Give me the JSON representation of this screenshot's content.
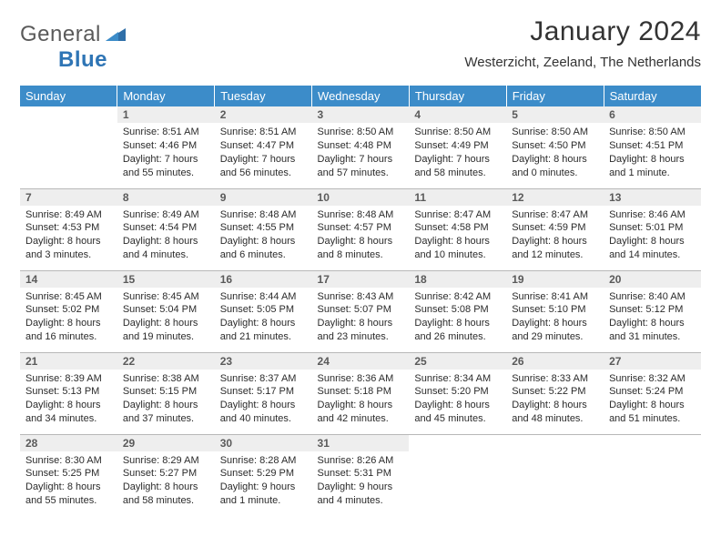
{
  "logo": {
    "text_a": "General",
    "text_b": "Blue"
  },
  "title": "January 2024",
  "subtitle": "Westerzicht, Zeeland, The Netherlands",
  "colors": {
    "header_bg": "#3c8cc9",
    "daynum_bg": "#eeeeee",
    "border": "#b8b8b8"
  },
  "weekdays": [
    "Sunday",
    "Monday",
    "Tuesday",
    "Wednesday",
    "Thursday",
    "Friday",
    "Saturday"
  ],
  "weeks": [
    [
      null,
      {
        "n": "1",
        "sunrise": "8:51 AM",
        "sunset": "4:46 PM",
        "day_h": "7",
        "day_m": "55"
      },
      {
        "n": "2",
        "sunrise": "8:51 AM",
        "sunset": "4:47 PM",
        "day_h": "7",
        "day_m": "56"
      },
      {
        "n": "3",
        "sunrise": "8:50 AM",
        "sunset": "4:48 PM",
        "day_h": "7",
        "day_m": "57"
      },
      {
        "n": "4",
        "sunrise": "8:50 AM",
        "sunset": "4:49 PM",
        "day_h": "7",
        "day_m": "58"
      },
      {
        "n": "5",
        "sunrise": "8:50 AM",
        "sunset": "4:50 PM",
        "day_h": "8",
        "day_m": "0"
      },
      {
        "n": "6",
        "sunrise": "8:50 AM",
        "sunset": "4:51 PM",
        "day_h": "8",
        "day_m": "1"
      }
    ],
    [
      {
        "n": "7",
        "sunrise": "8:49 AM",
        "sunset": "4:53 PM",
        "day_h": "8",
        "day_m": "3"
      },
      {
        "n": "8",
        "sunrise": "8:49 AM",
        "sunset": "4:54 PM",
        "day_h": "8",
        "day_m": "4"
      },
      {
        "n": "9",
        "sunrise": "8:48 AM",
        "sunset": "4:55 PM",
        "day_h": "8",
        "day_m": "6"
      },
      {
        "n": "10",
        "sunrise": "8:48 AM",
        "sunset": "4:57 PM",
        "day_h": "8",
        "day_m": "8"
      },
      {
        "n": "11",
        "sunrise": "8:47 AM",
        "sunset": "4:58 PM",
        "day_h": "8",
        "day_m": "10"
      },
      {
        "n": "12",
        "sunrise": "8:47 AM",
        "sunset": "4:59 PM",
        "day_h": "8",
        "day_m": "12"
      },
      {
        "n": "13",
        "sunrise": "8:46 AM",
        "sunset": "5:01 PM",
        "day_h": "8",
        "day_m": "14"
      }
    ],
    [
      {
        "n": "14",
        "sunrise": "8:45 AM",
        "sunset": "5:02 PM",
        "day_h": "8",
        "day_m": "16"
      },
      {
        "n": "15",
        "sunrise": "8:45 AM",
        "sunset": "5:04 PM",
        "day_h": "8",
        "day_m": "19"
      },
      {
        "n": "16",
        "sunrise": "8:44 AM",
        "sunset": "5:05 PM",
        "day_h": "8",
        "day_m": "21"
      },
      {
        "n": "17",
        "sunrise": "8:43 AM",
        "sunset": "5:07 PM",
        "day_h": "8",
        "day_m": "23"
      },
      {
        "n": "18",
        "sunrise": "8:42 AM",
        "sunset": "5:08 PM",
        "day_h": "8",
        "day_m": "26"
      },
      {
        "n": "19",
        "sunrise": "8:41 AM",
        "sunset": "5:10 PM",
        "day_h": "8",
        "day_m": "29"
      },
      {
        "n": "20",
        "sunrise": "8:40 AM",
        "sunset": "5:12 PM",
        "day_h": "8",
        "day_m": "31"
      }
    ],
    [
      {
        "n": "21",
        "sunrise": "8:39 AM",
        "sunset": "5:13 PM",
        "day_h": "8",
        "day_m": "34"
      },
      {
        "n": "22",
        "sunrise": "8:38 AM",
        "sunset": "5:15 PM",
        "day_h": "8",
        "day_m": "37"
      },
      {
        "n": "23",
        "sunrise": "8:37 AM",
        "sunset": "5:17 PM",
        "day_h": "8",
        "day_m": "40"
      },
      {
        "n": "24",
        "sunrise": "8:36 AM",
        "sunset": "5:18 PM",
        "day_h": "8",
        "day_m": "42"
      },
      {
        "n": "25",
        "sunrise": "8:34 AM",
        "sunset": "5:20 PM",
        "day_h": "8",
        "day_m": "45"
      },
      {
        "n": "26",
        "sunrise": "8:33 AM",
        "sunset": "5:22 PM",
        "day_h": "8",
        "day_m": "48"
      },
      {
        "n": "27",
        "sunrise": "8:32 AM",
        "sunset": "5:24 PM",
        "day_h": "8",
        "day_m": "51"
      }
    ],
    [
      {
        "n": "28",
        "sunrise": "8:30 AM",
        "sunset": "5:25 PM",
        "day_h": "8",
        "day_m": "55"
      },
      {
        "n": "29",
        "sunrise": "8:29 AM",
        "sunset": "5:27 PM",
        "day_h": "8",
        "day_m": "58"
      },
      {
        "n": "30",
        "sunrise": "8:28 AM",
        "sunset": "5:29 PM",
        "day_h": "9",
        "day_m": "1"
      },
      {
        "n": "31",
        "sunrise": "8:26 AM",
        "sunset": "5:31 PM",
        "day_h": "9",
        "day_m": "4"
      },
      null,
      null,
      null
    ]
  ],
  "labels": {
    "sunrise": "Sunrise:",
    "sunset": "Sunset:",
    "daylight": "Daylight:",
    "hours": "hours",
    "and": "and",
    "minutes": "minutes.",
    "minute": "minute."
  }
}
